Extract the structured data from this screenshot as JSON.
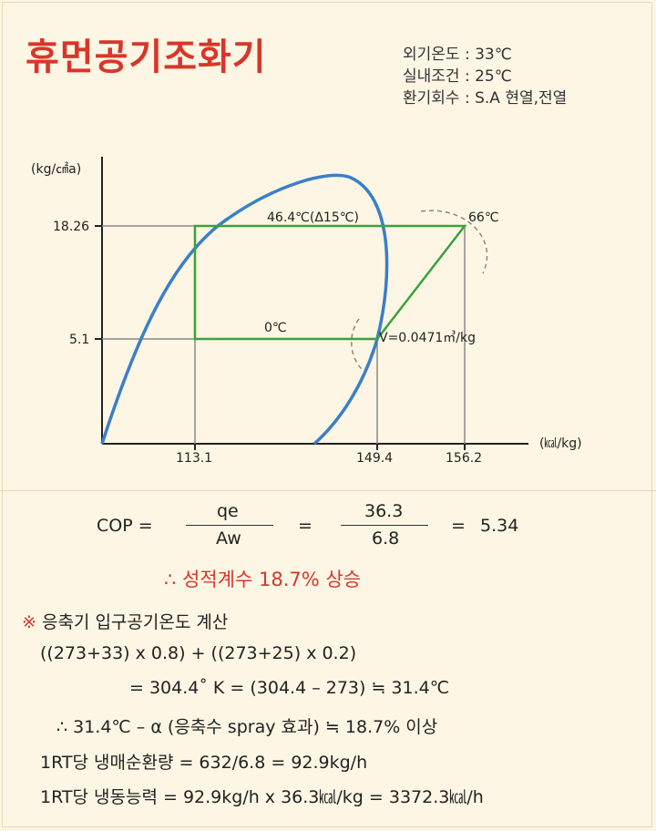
{
  "title": "휴먼공기조화기",
  "conditions": [
    {
      "label": "외기온도",
      "sep": ":",
      "value": "33℃"
    },
    {
      "label": "실내조건",
      "sep": ":",
      "value": "25℃"
    },
    {
      "label": "환기회수",
      "sep": ":",
      "value": "S.A 현열,전열"
    }
  ],
  "diagram": {
    "y_unit": "(kg/㎠a)",
    "x_unit": "(㎉/kg)",
    "y_ticks": [
      "18.26",
      "5.1"
    ],
    "x_ticks": [
      "113.1",
      "149.4",
      "156.2"
    ],
    "labels": {
      "condensing": "46.4℃(Δ15℃)",
      "discharge": "66℃",
      "evaporating": "0℃",
      "specific_volume": "V=0.0471㎥/kg"
    },
    "colors": {
      "dome": "#3a7fc8",
      "cycle": "#3aa23a",
      "guide": "#888888",
      "arc": "#888888"
    }
  },
  "cop": {
    "lhs": "COP =",
    "num1": "qe",
    "den1": "Aw",
    "eq1": "=",
    "num2": "36.3",
    "den2": "6.8",
    "eq2": "=",
    "result": "5.34"
  },
  "conclusion": "∴ 성적계수 18.7% 상승",
  "calc": {
    "mark": "※",
    "heading": "응축기 입구공기온도 계산",
    "lines": [
      "((273+33) x 0.8) + ((273+25) x 0.2)",
      "= 304.4˚ K = (304.4 – 273) ≒ 31.4℃",
      "∴ 31.4℃ – α  (응축수 spray 효과) ≒ 18.7% 이상",
      "1RT당 냉매순환량 = 632/6.8 = 92.9kg/h",
      "1RT당 냉동능력 = 92.9kg/h x 36.3㎉/kg = 3372.3㎉/h"
    ]
  }
}
